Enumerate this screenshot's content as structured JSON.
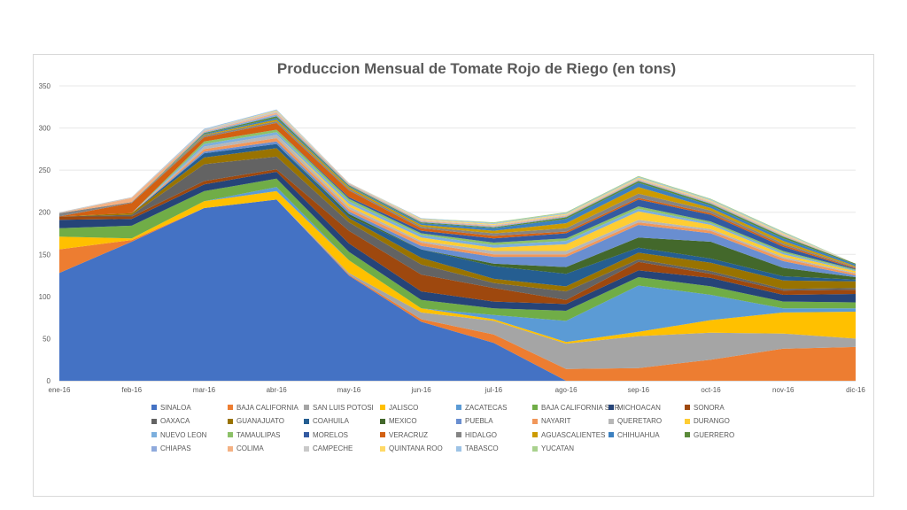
{
  "chart_data": {
    "type": "area",
    "title": "Produccion Mensual de Tomate Rojo de Riego (en tons)",
    "xlabel": "",
    "ylabel": "",
    "ylim": [
      0,
      350
    ],
    "yticks": [
      0,
      50,
      100,
      150,
      200,
      250,
      300,
      350
    ],
    "grid": true,
    "legend_position": "bottom",
    "stacked": true,
    "categories": [
      "ene-16",
      "feb-16",
      "mar-16",
      "abr-16",
      "may-16",
      "jun-16",
      "jul-16",
      "ago-16",
      "sep-16",
      "oct-16",
      "nov-16",
      "dic-16"
    ],
    "series": [
      {
        "name": "SINALOA",
        "color": "#4472C4",
        "values": [
          128,
          165,
          205,
          215,
          125,
          70,
          45,
          0,
          0,
          0,
          0,
          0
        ]
      },
      {
        "name": "BAJA CALIFORNIA",
        "color": "#ED7D31",
        "values": [
          28,
          2,
          0,
          0,
          1,
          3,
          10,
          14,
          15,
          25,
          38,
          40
        ]
      },
      {
        "name": "SAN LUIS POTOSI",
        "color": "#A5A5A5",
        "values": [
          0,
          0,
          0,
          0,
          2,
          8,
          16,
          30,
          38,
          32,
          18,
          10
        ]
      },
      {
        "name": "JALISCO",
        "color": "#FFC000",
        "values": [
          15,
          2,
          8,
          10,
          15,
          5,
          2,
          2,
          5,
          15,
          25,
          32
        ]
      },
      {
        "name": "ZACATECAS",
        "color": "#5B9BD5",
        "values": [
          0,
          0,
          0,
          5,
          0,
          0,
          5,
          25,
          55,
          30,
          5,
          4
        ]
      },
      {
        "name": "BAJA CALIFORNIA SUR",
        "color": "#70AD47",
        "values": [
          10,
          15,
          12,
          10,
          10,
          10,
          8,
          12,
          10,
          10,
          8,
          7
        ]
      },
      {
        "name": "MICHOACAN",
        "color": "#264478",
        "values": [
          10,
          8,
          8,
          8,
          10,
          10,
          8,
          8,
          8,
          10,
          8,
          10
        ]
      },
      {
        "name": "SONORA",
        "color": "#9E480E",
        "values": [
          4,
          3,
          4,
          3,
          15,
          20,
          16,
          5,
          10,
          5,
          5,
          5
        ]
      },
      {
        "name": "OAXACA",
        "color": "#636363",
        "values": [
          0,
          2,
          20,
          15,
          10,
          12,
          6,
          10,
          3,
          3,
          2,
          2
        ]
      },
      {
        "name": "GUANAJUATO",
        "color": "#997300",
        "values": [
          0,
          2,
          8,
          10,
          5,
          8,
          5,
          6,
          8,
          10,
          10,
          8
        ]
      },
      {
        "name": "COAHUILA",
        "color": "#255E91",
        "values": [
          0,
          0,
          5,
          5,
          2,
          10,
          15,
          15,
          6,
          5,
          5,
          2
        ]
      },
      {
        "name": "MEXICO",
        "color": "#43682B",
        "values": [
          0,
          0,
          0,
          0,
          3,
          0,
          3,
          8,
          12,
          20,
          10,
          3
        ]
      },
      {
        "name": "PUEBLA",
        "color": "#698ED0",
        "values": [
          0,
          0,
          2,
          3,
          3,
          4,
          8,
          12,
          15,
          10,
          8,
          2
        ]
      },
      {
        "name": "NAYARIT",
        "color": "#F1975A",
        "values": [
          0,
          0,
          3,
          4,
          3,
          4,
          3,
          3,
          3,
          3,
          3,
          2
        ]
      },
      {
        "name": "QUERETARO",
        "color": "#B7B7B7",
        "values": [
          0,
          0,
          3,
          4,
          3,
          2,
          4,
          4,
          3,
          2,
          2,
          1
        ]
      },
      {
        "name": "DURANGO",
        "color": "#FFCD33",
        "values": [
          0,
          0,
          0,
          0,
          3,
          4,
          4,
          8,
          10,
          5,
          3,
          2
        ]
      },
      {
        "name": "NUEVO LEON",
        "color": "#7CAFDD",
        "values": [
          0,
          0,
          3,
          3,
          3,
          3,
          3,
          4,
          3,
          2,
          2,
          1
        ]
      },
      {
        "name": "TAMAULIPAS",
        "color": "#8CC168",
        "values": [
          0,
          0,
          3,
          3,
          3,
          2,
          3,
          3,
          3,
          2,
          2,
          1
        ]
      },
      {
        "name": "MORELOS",
        "color": "#335AA1",
        "values": [
          0,
          0,
          0,
          0,
          2,
          3,
          5,
          6,
          8,
          8,
          5,
          1
        ]
      },
      {
        "name": "VERACRUZ",
        "color": "#D26012",
        "values": [
          0,
          12,
          5,
          8,
          8,
          3,
          3,
          2,
          2,
          2,
          2,
          1
        ]
      },
      {
        "name": "HIDALGO",
        "color": "#848484",
        "values": [
          4,
          1,
          2,
          2,
          2,
          2,
          3,
          4,
          5,
          3,
          2,
          1
        ]
      },
      {
        "name": "AGUASCALIENTES",
        "color": "#CC9A00",
        "values": [
          0,
          0,
          1,
          2,
          2,
          2,
          3,
          6,
          8,
          3,
          3,
          1
        ]
      },
      {
        "name": "CHIHUAHUA",
        "color": "#3C80C0",
        "values": [
          0,
          0,
          1,
          2,
          1,
          2,
          3,
          5,
          5,
          3,
          3,
          2
        ]
      },
      {
        "name": "GUERRERO",
        "color": "#5A8A39",
        "values": [
          0,
          0,
          1,
          2,
          1,
          1,
          1,
          2,
          2,
          2,
          2,
          1
        ]
      },
      {
        "name": "CHIAPAS",
        "color": "#8FAADC",
        "values": [
          0,
          0,
          1,
          2,
          1,
          1,
          1,
          1,
          1,
          1,
          1,
          0
        ]
      },
      {
        "name": "COLIMA",
        "color": "#F4B183",
        "values": [
          0,
          5,
          1,
          2,
          1,
          1,
          1,
          1,
          1,
          1,
          1,
          0
        ]
      },
      {
        "name": "CAMPECHE",
        "color": "#C9C9C9",
        "values": [
          1,
          1,
          2,
          2,
          1,
          1,
          1,
          1,
          1,
          1,
          1,
          0
        ]
      },
      {
        "name": "QUINTANA ROO",
        "color": "#FFD966",
        "values": [
          0,
          0,
          0,
          1,
          0,
          1,
          1,
          1,
          1,
          1,
          1,
          0
        ]
      },
      {
        "name": "TABASCO",
        "color": "#9DC3E6",
        "values": [
          0,
          0,
          1,
          1,
          0,
          1,
          1,
          1,
          1,
          1,
          1,
          0
        ]
      },
      {
        "name": "YUCATAN",
        "color": "#A9D18E",
        "values": [
          0,
          0,
          0,
          0,
          0,
          0,
          1,
          1,
          1,
          1,
          1,
          0
        ]
      }
    ]
  }
}
